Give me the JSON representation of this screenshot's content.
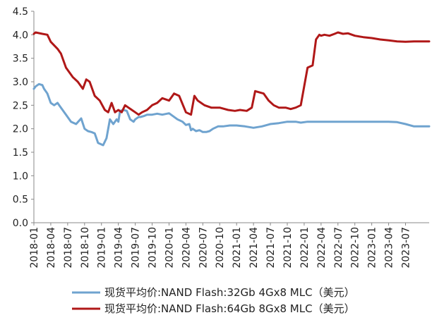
{
  "chart_data": {
    "type": "line",
    "categories": [
      "2018-01",
      "2018-04",
      "2018-07",
      "2018-10",
      "2019-01",
      "2019-04",
      "2019-07",
      "2019-10",
      "2020-01",
      "2020-04",
      "2020-07",
      "2020-10",
      "2021-01",
      "2021-04",
      "2021-07",
      "2021-10",
      "2022-01",
      "2022-04",
      "2022-07",
      "2022-10",
      "2023-01",
      "2023-04",
      "2023-07"
    ],
    "x_range": [
      0,
      23.4
    ],
    "ylim": [
      0.0,
      4.5
    ],
    "y_ticks": [
      "0.0",
      "0.5",
      "1.0",
      "1.5",
      "2.0",
      "2.5",
      "3.0",
      "3.5",
      "4.0",
      "4.5"
    ],
    "grid": false,
    "legend_position": "bottom",
    "series": [
      {
        "name": "现货平均价:NAND Flash:32Gb 4Gx8 MLC（美元）",
        "color": "#6fa3cf",
        "x": [
          0,
          0.1,
          0.3,
          0.5,
          0.6,
          0.8,
          1.0,
          1.2,
          1.4,
          1.6,
          1.9,
          2.2,
          2.5,
          2.8,
          3.0,
          3.2,
          3.4,
          3.6,
          3.8,
          4.1,
          4.3,
          4.5,
          4.7,
          4.9,
          5.0,
          5.1,
          5.3,
          5.5,
          5.7,
          5.9,
          6.0,
          6.2,
          6.3,
          6.5,
          6.7,
          7.0,
          7.3,
          7.6,
          8.0,
          8.5,
          8.8,
          9.0,
          9.2,
          9.3,
          9.4,
          9.6,
          9.8,
          10.0,
          10.2,
          10.4,
          10.6,
          10.9,
          11.2,
          11.6,
          12.0,
          12.5,
          13.0,
          13.5,
          14.0,
          14.5,
          15.0,
          15.5,
          15.8,
          16.2,
          16.6,
          17.0,
          17.5,
          18.0,
          19.0,
          20.0,
          20.5,
          21.0,
          21.5,
          22.0,
          22.5,
          23.0,
          23.4
        ],
        "y": [
          2.85,
          2.9,
          2.95,
          2.93,
          2.85,
          2.75,
          2.55,
          2.5,
          2.55,
          2.45,
          2.3,
          2.15,
          2.1,
          2.22,
          2.0,
          1.95,
          1.93,
          1.9,
          1.7,
          1.65,
          1.8,
          2.2,
          2.1,
          2.2,
          2.15,
          2.38,
          2.4,
          2.38,
          2.2,
          2.15,
          2.2,
          2.25,
          2.25,
          2.27,
          2.3,
          2.3,
          2.32,
          2.3,
          2.33,
          2.2,
          2.15,
          2.08,
          2.1,
          1.97,
          2.0,
          1.95,
          1.97,
          1.93,
          1.93,
          1.95,
          2.0,
          2.05,
          2.05,
          2.07,
          2.07,
          2.05,
          2.02,
          2.05,
          2.1,
          2.12,
          2.15,
          2.15,
          2.13,
          2.15,
          2.15,
          2.15,
          2.15,
          2.15,
          2.15,
          2.15,
          2.15,
          2.15,
          2.14,
          2.1,
          2.05,
          2.05,
          2.05
        ]
      },
      {
        "name": "现货平均价:NAND Flash:64Gb 8Gx8 MLC（美元）",
        "color": "#b01818",
        "x": [
          0,
          0.1,
          0.5,
          0.8,
          1.0,
          1.4,
          1.6,
          1.9,
          2.3,
          2.6,
          2.9,
          3.1,
          3.3,
          3.6,
          3.9,
          4.2,
          4.4,
          4.6,
          4.8,
          5.0,
          5.2,
          5.4,
          5.6,
          5.8,
          6.0,
          6.2,
          6.4,
          6.7,
          7.0,
          7.3,
          7.6,
          8.0,
          8.3,
          8.6,
          9.0,
          9.3,
          9.5,
          9.7,
          9.9,
          10.1,
          10.5,
          11.0,
          11.5,
          11.9,
          12.2,
          12.6,
          12.9,
          13.1,
          13.3,
          13.6,
          13.9,
          14.2,
          14.5,
          14.9,
          15.2,
          15.5,
          15.8,
          16.0,
          16.2,
          16.5,
          16.7,
          16.9,
          17.0,
          17.2,
          17.5,
          17.8,
          18.0,
          18.3,
          18.6,
          19.0,
          19.5,
          20.0,
          20.5,
          21.0,
          21.5,
          22.0,
          22.5,
          23.0,
          23.4
        ],
        "y": [
          4.02,
          4.05,
          4.02,
          4.0,
          3.85,
          3.7,
          3.6,
          3.3,
          3.1,
          3.0,
          2.85,
          3.05,
          3.0,
          2.7,
          2.6,
          2.4,
          2.35,
          2.55,
          2.35,
          2.4,
          2.35,
          2.5,
          2.45,
          2.4,
          2.35,
          2.3,
          2.35,
          2.4,
          2.5,
          2.55,
          2.65,
          2.6,
          2.75,
          2.7,
          2.35,
          2.3,
          2.7,
          2.6,
          2.55,
          2.5,
          2.45,
          2.45,
          2.4,
          2.38,
          2.4,
          2.38,
          2.45,
          2.8,
          2.78,
          2.75,
          2.6,
          2.5,
          2.45,
          2.45,
          2.42,
          2.45,
          2.5,
          2.9,
          3.3,
          3.35,
          3.9,
          4.0,
          3.98,
          4.0,
          3.98,
          4.02,
          4.05,
          4.02,
          4.03,
          3.98,
          3.95,
          3.93,
          3.9,
          3.88,
          3.86,
          3.85,
          3.86,
          3.86,
          3.86
        ]
      }
    ]
  }
}
